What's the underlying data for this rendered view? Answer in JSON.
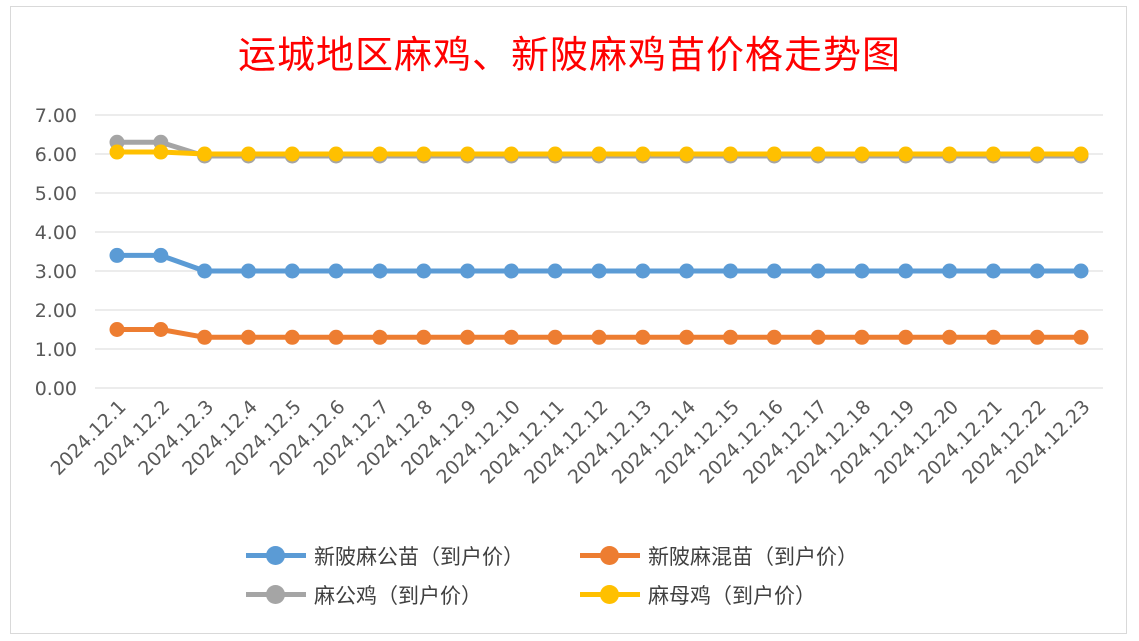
{
  "chart_data": {
    "type": "line",
    "title": "运城地区麻鸡、新陂麻鸡苗价格走势图",
    "categories": [
      "2024.12.1",
      "2024.12.2",
      "2024.12.3",
      "2024.12.4",
      "2024.12.5",
      "2024.12.6",
      "2024.12.7",
      "2024.12.8",
      "2024.12.9",
      "2024.12.10",
      "2024.12.11",
      "2024.12.12",
      "2024.12.13",
      "2024.12.14",
      "2024.12.15",
      "2024.12.16",
      "2024.12.17",
      "2024.12.18",
      "2024.12.19",
      "2024.12.20",
      "2024.12.21",
      "2024.12.22",
      "2024.12.23"
    ],
    "y_ticks": [
      "0.00",
      "1.00",
      "2.00",
      "3.00",
      "4.00",
      "5.00",
      "6.00",
      "7.00"
    ],
    "ylim": [
      0,
      7
    ],
    "grid": true,
    "legend_position": "bottom",
    "series": [
      {
        "name": "新陂麻公苗（到户价）",
        "color": "#5b9bd5",
        "values": [
          3.4,
          3.4,
          3.0,
          3.0,
          3.0,
          3.0,
          3.0,
          3.0,
          3.0,
          3.0,
          3.0,
          3.0,
          3.0,
          3.0,
          3.0,
          3.0,
          3.0,
          3.0,
          3.0,
          3.0,
          3.0,
          3.0,
          3.0
        ]
      },
      {
        "name": "新陂麻混苗（到户价）",
        "color": "#ed7d31",
        "values": [
          1.5,
          1.5,
          1.3,
          1.3,
          1.3,
          1.3,
          1.3,
          1.3,
          1.3,
          1.3,
          1.3,
          1.3,
          1.3,
          1.3,
          1.3,
          1.3,
          1.3,
          1.3,
          1.3,
          1.3,
          1.3,
          1.3,
          1.3
        ]
      },
      {
        "name": "麻公鸡（到户价）",
        "color": "#a5a5a5",
        "values": [
          6.3,
          6.3,
          5.95,
          5.95,
          5.95,
          5.95,
          5.95,
          5.95,
          5.95,
          5.95,
          5.95,
          5.95,
          5.95,
          5.95,
          5.95,
          5.95,
          5.95,
          5.95,
          5.95,
          5.95,
          5.95,
          5.95,
          5.95
        ]
      },
      {
        "name": "麻母鸡（到户价）",
        "color": "#ffc000",
        "values": [
          6.05,
          6.05,
          6.0,
          6.0,
          6.0,
          6.0,
          6.0,
          6.0,
          6.0,
          6.0,
          6.0,
          6.0,
          6.0,
          6.0,
          6.0,
          6.0,
          6.0,
          6.0,
          6.0,
          6.0,
          6.0,
          6.0,
          6.0
        ]
      }
    ]
  }
}
